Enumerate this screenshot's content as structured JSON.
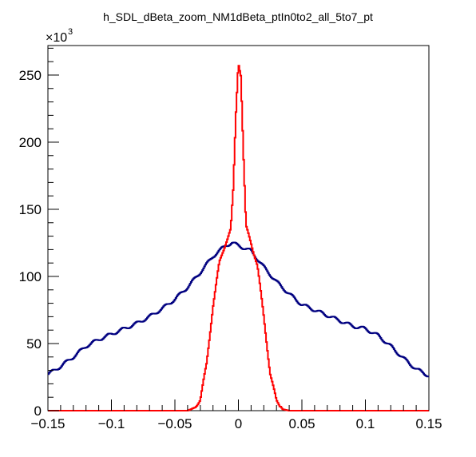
{
  "chart_data": {
    "type": "line",
    "title": "h_SDL_dBeta_zoom_NM1dBeta_ptIn0to2_all_5to7_pt",
    "xlabel": "",
    "ylabel": "",
    "y_multiplier_label": "×10",
    "y_multiplier_exponent": "3",
    "xlim": [
      -0.15,
      0.15
    ],
    "ylim": [
      0,
      272
    ],
    "x_ticks": [
      "−0.15",
      "−0.1",
      "−0.05",
      "0",
      "0.05",
      "0.1",
      "0.15"
    ],
    "x_tick_values": [
      -0.15,
      -0.1,
      -0.05,
      0,
      0.05,
      0.1,
      0.15
    ],
    "y_ticks": [
      "0",
      "50",
      "100",
      "150",
      "200",
      "250"
    ],
    "y_tick_values": [
      0,
      50,
      100,
      150,
      200,
      250
    ],
    "grid": false,
    "legend": "none",
    "series": [
      {
        "color": "#000080",
        "x": [
          -0.15,
          -0.14,
          -0.13,
          -0.12,
          -0.11,
          -0.1,
          -0.09,
          -0.08,
          -0.07,
          -0.06,
          -0.05,
          -0.04,
          -0.03,
          -0.02,
          -0.01,
          -0.005,
          0,
          0.005,
          0.01,
          0.02,
          0.03,
          0.04,
          0.05,
          0.06,
          0.07,
          0.08,
          0.09,
          0.1,
          0.11,
          0.12,
          0.13,
          0.14,
          0.15
        ],
        "y": [
          27,
          33,
          40,
          48,
          53,
          57,
          61,
          65,
          70,
          76,
          83,
          92,
          103,
          115,
          123,
          125,
          123,
          121,
          119,
          107,
          96,
          87,
          79,
          75,
          71,
          67,
          63,
          61,
          56,
          48,
          39,
          31,
          26
        ]
      },
      {
        "color": "#ff0000",
        "x": [
          -0.15,
          -0.04,
          -0.035,
          -0.03,
          -0.025,
          -0.02,
          -0.015,
          -0.01,
          -0.006,
          -0.004,
          -0.002,
          0,
          0.002,
          0.004,
          0.006,
          0.01,
          0.015,
          0.02,
          0.025,
          0.03,
          0.035,
          0.04,
          0.15
        ],
        "y": [
          0,
          0,
          2,
          8,
          35,
          78,
          110,
          125,
          135,
          165,
          220,
          260,
          250,
          190,
          137,
          125,
          108,
          70,
          28,
          7,
          1,
          0,
          0
        ]
      }
    ]
  }
}
